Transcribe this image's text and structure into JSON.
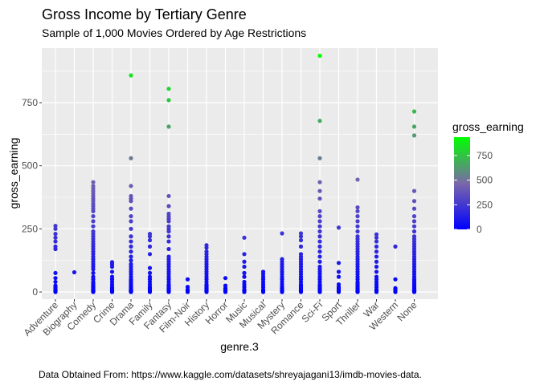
{
  "chart_data": {
    "type": "scatter",
    "title": "Gross Income by Tertiary Genre",
    "subtitle": "Sample of 1,000 Movies Ordered by Age Restrictions",
    "xlabel": "genre.3",
    "ylabel": "gross_earning",
    "caption": "Data Obtained From: https://www.kaggle.com/datasets/shreyajagani13/imdb-movies-data.",
    "categories": [
      "Adventure",
      "Biography",
      "Comedy",
      "Crime",
      "Drama",
      "Family",
      "Fantasy",
      "Film-Noir",
      "History",
      "Horror",
      "Music",
      "Musical",
      "Mystery",
      "Romance",
      "Sci-Fi",
      "Sport",
      "Thriller",
      "War",
      "Western",
      "None"
    ],
    "y_ticks": [
      0,
      250,
      500,
      750
    ],
    "ylim": [
      -30,
      960
    ],
    "grid": true,
    "legend": {
      "title": "gross_earning",
      "position": "right",
      "ticks": [
        0,
        250,
        500,
        750
      ],
      "range": [
        0,
        936
      ],
      "color_low": "#0000ff",
      "color_mid": "#7b68a8",
      "color_high": "#00ff00"
    },
    "points": {
      "Adventure": [
        0,
        2,
        5,
        8,
        12,
        18,
        25,
        40,
        55,
        75,
        170,
        180,
        200,
        215,
        230,
        250,
        262
      ],
      "Biography": [
        78
      ],
      "Comedy": [
        0,
        1,
        2,
        3,
        4,
        5,
        6,
        8,
        10,
        12,
        15,
        18,
        20,
        25,
        30,
        35,
        40,
        50,
        60,
        75,
        90,
        100,
        110,
        120,
        130,
        140,
        150,
        160,
        170,
        180,
        190,
        200,
        210,
        220,
        230,
        240,
        260,
        280,
        300,
        320,
        330,
        340,
        350,
        360,
        370,
        380,
        390,
        400,
        410,
        420,
        435
      ],
      "Crime": [
        0,
        2,
        4,
        6,
        10,
        15,
        20,
        30,
        40,
        50,
        60,
        80,
        100,
        110,
        118
      ],
      "Drama": [
        0,
        1,
        2,
        3,
        4,
        5,
        6,
        8,
        10,
        12,
        15,
        18,
        20,
        25,
        30,
        35,
        40,
        45,
        50,
        60,
        70,
        80,
        90,
        100,
        110,
        125,
        140,
        160,
        180,
        200,
        220,
        250,
        280,
        300,
        330,
        360,
        370,
        380,
        420,
        530,
        858
      ],
      "Family": [
        0,
        5,
        10,
        15,
        20,
        30,
        40,
        50,
        60,
        75,
        95,
        150,
        180,
        205,
        220,
        230
      ],
      "Fantasy": [
        0,
        2,
        5,
        8,
        10,
        15,
        20,
        25,
        30,
        40,
        50,
        60,
        70,
        80,
        90,
        100,
        110,
        120,
        130,
        140,
        170,
        200,
        220,
        240,
        250,
        260,
        280,
        290,
        300,
        310,
        340,
        380,
        655,
        760,
        805
      ],
      "Film-Noir": [
        0,
        5,
        10,
        20,
        50
      ],
      "History": [
        0,
        2,
        5,
        8,
        10,
        15,
        20,
        25,
        30,
        40,
        50,
        60,
        70,
        80,
        90,
        100,
        110,
        120,
        130,
        140,
        150,
        160,
        175,
        185
      ],
      "Horror": [
        0,
        3,
        6,
        10,
        15,
        25,
        55
      ],
      "Music": [
        0,
        5,
        10,
        20,
        30,
        40,
        60,
        75,
        100,
        120,
        150,
        215
      ],
      "Musical": [
        0,
        5,
        10,
        20,
        30,
        40,
        50,
        60,
        70,
        80
      ],
      "Mystery": [
        0,
        2,
        5,
        10,
        15,
        20,
        30,
        40,
        50,
        60,
        70,
        80,
        90,
        100,
        110,
        120,
        130,
        232
      ],
      "Romance": [
        0,
        2,
        5,
        8,
        10,
        15,
        20,
        25,
        30,
        40,
        50,
        60,
        70,
        80,
        90,
        100,
        110,
        120,
        130,
        140,
        150,
        180,
        205,
        220,
        232
      ],
      "Sci-Fi": [
        0,
        2,
        5,
        8,
        10,
        15,
        20,
        25,
        30,
        40,
        50,
        60,
        70,
        80,
        90,
        100,
        120,
        140,
        160,
        180,
        200,
        220,
        240,
        260,
        280,
        300,
        320,
        370,
        400,
        435,
        530,
        678,
        936
      ],
      "Sport": [
        0,
        5,
        10,
        15,
        20,
        30,
        60,
        80,
        115,
        255
      ],
      "Thriller": [
        0,
        1,
        2,
        3,
        5,
        8,
        10,
        15,
        20,
        25,
        30,
        35,
        40,
        50,
        60,
        70,
        80,
        90,
        100,
        110,
        120,
        130,
        140,
        150,
        160,
        170,
        180,
        190,
        200,
        210,
        220,
        240,
        260,
        280,
        300,
        320,
        335,
        445
      ],
      "War": [
        0,
        5,
        10,
        20,
        30,
        40,
        50,
        60,
        80,
        100,
        120,
        140,
        160,
        180,
        200,
        215,
        228
      ],
      "Western": [
        0,
        5,
        10,
        15,
        50,
        180
      ],
      "None": [
        0,
        1,
        2,
        3,
        4,
        5,
        6,
        8,
        10,
        12,
        15,
        18,
        20,
        25,
        30,
        35,
        40,
        45,
        50,
        60,
        70,
        80,
        90,
        100,
        110,
        120,
        130,
        140,
        150,
        160,
        170,
        180,
        190,
        200,
        210,
        220,
        240,
        260,
        280,
        300,
        330,
        360,
        400,
        620,
        655,
        715
      ]
    }
  }
}
